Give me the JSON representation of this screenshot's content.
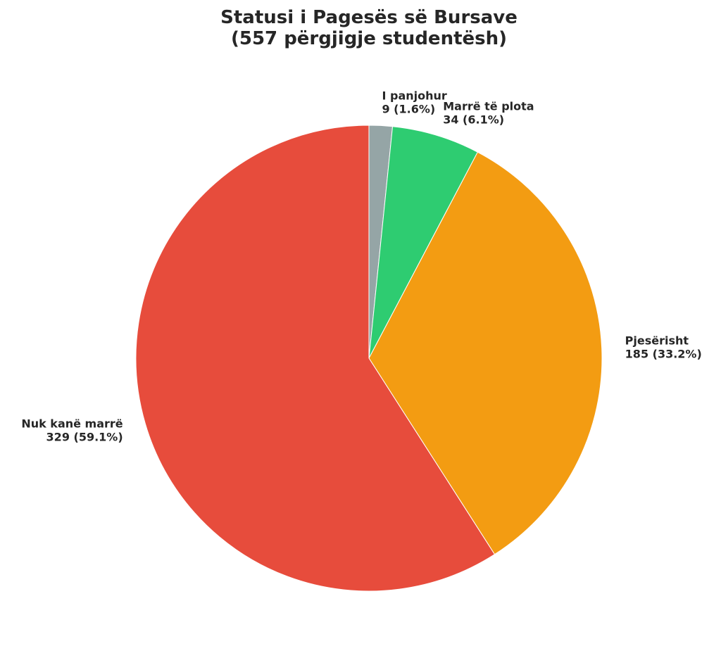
{
  "chart_data": {
    "type": "pie",
    "title": [
      "Statusi i Pagesës së Bursave",
      "(557 përgjigje studentësh)"
    ],
    "categories": [
      "I panjohur",
      "Marrë të plota",
      "Pjesërisht",
      "Nuk kanë marrë"
    ],
    "values": [
      9,
      34,
      185,
      329
    ],
    "value_labels": [
      "9 (1.6%)",
      "34 (6.1%)",
      "185 (33.2%)",
      "329 (59.1%)"
    ],
    "colors": [
      "#95a5a6",
      "#2ecc71",
      "#f39c12",
      "#e74c3c"
    ]
  }
}
